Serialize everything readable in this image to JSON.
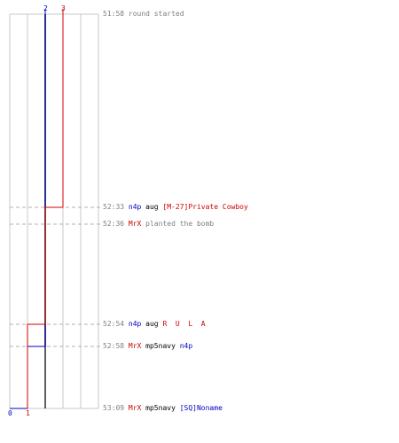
{
  "chart_data": {
    "type": "line",
    "title": "",
    "columns": 5,
    "grid_columns_dark": [
      2
    ],
    "teams": [
      {
        "name": "blue",
        "color": "#0000c0",
        "start_label": "2",
        "end_label": "0",
        "points": [
          [
            0,
            2
          ],
          [
            4,
            1
          ],
          [
            5,
            0
          ]
        ]
      },
      {
        "name": "red",
        "color": "#d00000",
        "start_label": "3",
        "end_label": "1",
        "points": [
          [
            0,
            3
          ],
          [
            1,
            2
          ],
          [
            3,
            1
          ]
        ]
      }
    ],
    "events": [
      {
        "time": "51:58",
        "parts": [
          {
            "text": "round started",
            "color": "gray"
          }
        ]
      },
      {
        "time": "52:33",
        "parts": [
          {
            "text": "n4p",
            "color": "blue"
          },
          {
            "text": " aug ",
            "color": "black"
          },
          {
            "text": "[M-27]Private Cowboy",
            "color": "red"
          }
        ]
      },
      {
        "time": "52:36",
        "parts": [
          {
            "text": "MrX",
            "color": "red"
          },
          {
            "text": " planted the bomb",
            "color": "gray"
          }
        ]
      },
      {
        "time": "52:54",
        "parts": [
          {
            "text": "n4p",
            "color": "blue"
          },
          {
            "text": " aug ",
            "color": "black"
          },
          {
            "text": "R  U  L  A",
            "color": "red"
          }
        ]
      },
      {
        "time": "52:58",
        "parts": [
          {
            "text": "MrX",
            "color": "red"
          },
          {
            "text": " mp5navy ",
            "color": "black"
          },
          {
            "text": "n4p",
            "color": "blue"
          }
        ]
      },
      {
        "time": "53:09",
        "parts": [
          {
            "text": "MrX",
            "color": "red"
          },
          {
            "text": " mp5navy ",
            "color": "black"
          },
          {
            "text": "[SQ]Noname",
            "color": "blue"
          }
        ]
      }
    ]
  }
}
